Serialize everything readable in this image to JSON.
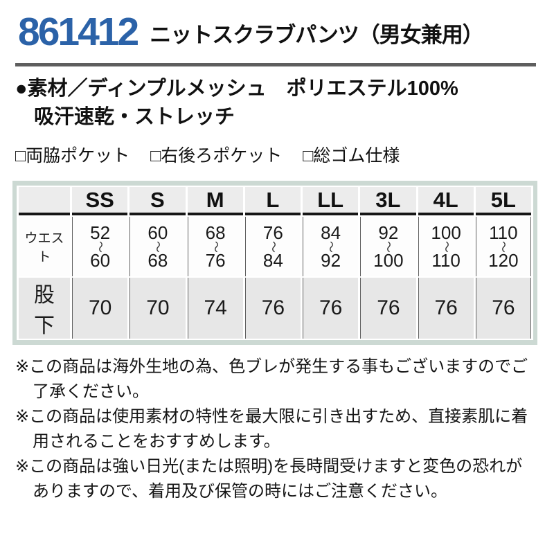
{
  "header": {
    "product_code": "861412",
    "product_name": "ニットスクラブパンツ（男女兼用）"
  },
  "material": {
    "line1": "●素材／ディンプルメッシュ　ポリエステル100%",
    "line2": "吸汗速乾・ストレッチ"
  },
  "features": {
    "item1": "□両脇ポケット",
    "item2": "□右後ろポケット",
    "item3": "□総ゴム仕様"
  },
  "size_table": {
    "corner_label": "",
    "sizes": [
      "SS",
      "S",
      "M",
      "L",
      "LL",
      "3L",
      "4L",
      "5L"
    ],
    "range_separator": "〜",
    "waist": {
      "label": "ウエスト",
      "values": [
        {
          "min": "52",
          "max": "60"
        },
        {
          "min": "60",
          "max": "68"
        },
        {
          "min": "68",
          "max": "76"
        },
        {
          "min": "76",
          "max": "84"
        },
        {
          "min": "84",
          "max": "92"
        },
        {
          "min": "92",
          "max": "100"
        },
        {
          "min": "100",
          "max": "110"
        },
        {
          "min": "110",
          "max": "120"
        }
      ]
    },
    "inseam": {
      "label": "股　下",
      "values": [
        "70",
        "70",
        "74",
        "76",
        "76",
        "76",
        "76",
        "76"
      ]
    }
  },
  "notes": {
    "note1": "※この商品は海外生地の為、色ブレが発生する事もございますのでご了承ください。",
    "note2": "※この商品は使用素材の特性を最大限に引き出すため、直接素肌に着用されることをおすすめします。",
    "note3": "※この商品は強い日光(または照明)を長時間受けますと変色の恐れがありますので、着用及び保管の時にはご注意ください。"
  },
  "colors": {
    "accent_blue": "#2b62a8",
    "divider_gray": "#5e5e5e",
    "table_band": "#ccd9d3",
    "header_cell_bg": "#ececec",
    "inseam_row_bg": "#e7e7e7"
  }
}
